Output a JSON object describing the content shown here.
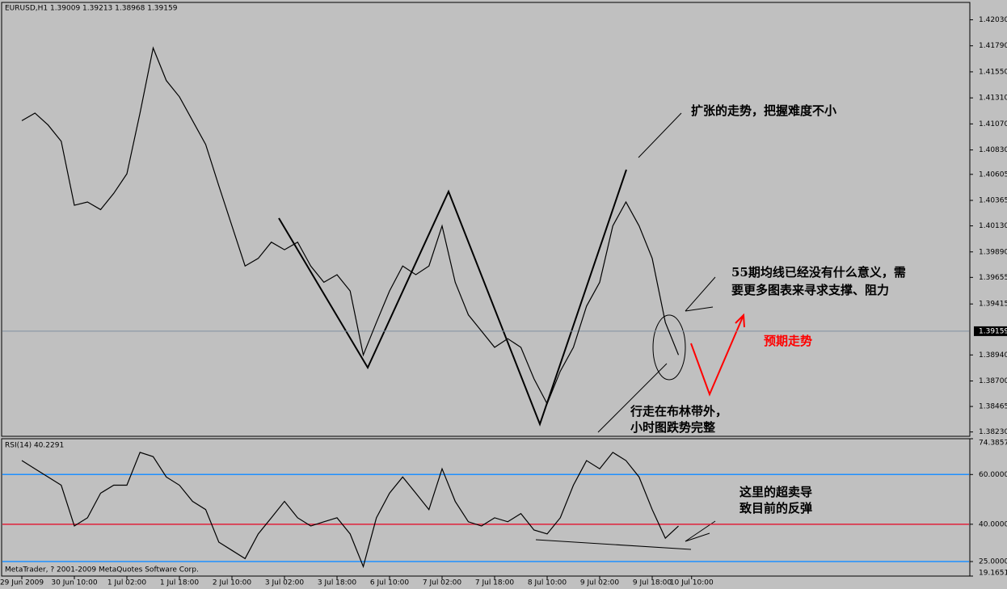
{
  "chart_data": [
    {
      "type": "line",
      "title": "EURUSD,H1 1.39009 1.39213 1.38968 1.39159",
      "categories": [
        "29 Jun 2009",
        null,
        null,
        null,
        "30 Jun 10:00",
        null,
        null,
        null,
        "1 Jul 02:00",
        null,
        null,
        null,
        "1 Jul 18:00",
        null,
        null,
        null,
        "2 Jul 10:00",
        null,
        null,
        null,
        "3 Jul 02:00",
        null,
        null,
        null,
        "3 Jul 18:00",
        null,
        null,
        null,
        "6 Jul 10:00",
        null,
        null,
        null,
        "7 Jul 02:00",
        null,
        null,
        null,
        "7 Jul 18:00",
        null,
        null,
        null,
        "8 Jul 10:00",
        null,
        null,
        null,
        "9 Jul 02:00",
        null,
        null,
        null,
        "9 Jul 18:00",
        null,
        null,
        "10 Jul 10:00",
        null,
        null,
        null,
        null,
        null,
        null,
        null,
        null,
        null,
        null,
        null,
        null,
        null,
        null,
        null,
        null,
        null,
        null,
        null,
        null
      ],
      "values": [
        1.411,
        1.4117,
        1.4106,
        1.4091,
        1.4032,
        1.4035,
        1.4028,
        1.4043,
        1.4061,
        1.4117,
        1.4177,
        1.4147,
        1.4132,
        1.411,
        1.4088,
        1.405,
        1.4013,
        1.3976,
        1.3983,
        1.3998,
        1.3991,
        1.3998,
        1.3976,
        1.3961,
        1.3968,
        1.3953,
        1.3894,
        1.3924,
        1.3953,
        1.3976,
        1.3968,
        1.3976,
        1.4013,
        1.3961,
        1.3931,
        1.3916,
        1.3901,
        1.3909,
        1.3901,
        1.3872,
        1.3849,
        1.3879,
        1.3901,
        1.3939,
        1.3961,
        1.4013,
        1.4035,
        1.4013,
        1.3983,
        1.3924,
        1.3894,
        null,
        null,
        null,
        null,
        null,
        null,
        null,
        null,
        null,
        null,
        null,
        null,
        null,
        null,
        null,
        null,
        null,
        null,
        null,
        null,
        null
      ],
      "color": "#000000",
      "ylim": [
        1.3819,
        1.4219
      ],
      "yticks": [
        {
          "value": 1.4203,
          "label": "1.42030"
        },
        {
          "value": 1.4179,
          "label": "1.41790"
        },
        {
          "value": 1.4155,
          "label": "1.41550"
        },
        {
          "value": 1.4131,
          "label": "1.41310"
        },
        {
          "value": 1.4107,
          "label": "1.41070"
        },
        {
          "value": 1.4083,
          "label": "1.40830"
        },
        {
          "value": 1.40605,
          "label": "1.40605"
        },
        {
          "value": 1.40365,
          "label": "1.40365"
        },
        {
          "value": 1.4013,
          "label": "1.40130"
        },
        {
          "value": 1.3989,
          "label": "1.39890"
        },
        1.39655,
        {
          "value": 1.3941,
          "label": "1.39415"
        },
        {
          "value": 1.3894,
          "label": "1.38940"
        },
        {
          "value": 1.387,
          "label": "1.38700"
        },
        1.38465,
        {
          "value": 1.3823,
          "label": "1.38230"
        }
      ],
      "last_price": {
        "value": 1.39159,
        "label": "1.39159"
      },
      "annotations": [
        [
          "扩张的走势，把握难度不小"
        ],
        [
          "55期均线已经没有什么意义，需",
          "要更多图表来寻求支撑、阻力"
        ],
        [
          "预期走势"
        ],
        [
          "行走在布林带外，",
          "小时图跌势完整"
        ]
      ]
    },
    {
      "type": "line",
      "title": "RSI(14) 40.2291",
      "values": [
        65.6,
        62.3,
        59.0,
        55.7,
        39.3,
        42.6,
        52.5,
        55.7,
        55.7,
        68.9,
        67.2,
        59.0,
        55.7,
        49.2,
        45.9,
        32.8,
        29.5,
        26.2,
        36.1,
        42.6,
        49.2,
        42.6,
        39.3,
        41.0,
        42.6,
        36.1,
        23.0,
        42.6,
        52.5,
        59.0,
        52.5,
        45.9,
        62.3,
        49.2,
        41.0,
        39.3,
        42.6,
        41.0,
        44.3,
        37.7,
        36.1,
        42.6,
        55.7,
        65.6,
        62.3,
        68.9,
        65.6,
        59.0,
        45.9,
        34.4,
        39.3,
        null,
        null,
        null,
        null,
        null,
        null,
        null,
        null,
        null,
        null,
        null,
        null,
        null,
        null,
        null,
        null,
        null,
        null,
        null,
        null,
        null
      ],
      "color": "#000000",
      "ylim": [
        19.1651,
        74.3857
      ],
      "yticks": [
        74.3857,
        {
          "value": 60,
          "label": "60.0000"
        },
        {
          "value": 40,
          "label": "40.0000"
        },
        {
          "value": 25,
          "label": "25.0000"
        },
        19.1651
      ],
      "level_colors": [
        null,
        "#1e90ff",
        "#e0203a",
        "#1e90ff",
        null
      ],
      "footer": "MetaTrader, ? 2001-2009 MetaQuotes Software Corp.",
      "annotations": [
        [
          "这里的超卖导",
          "致目前的反弹"
        ]
      ]
    }
  ]
}
